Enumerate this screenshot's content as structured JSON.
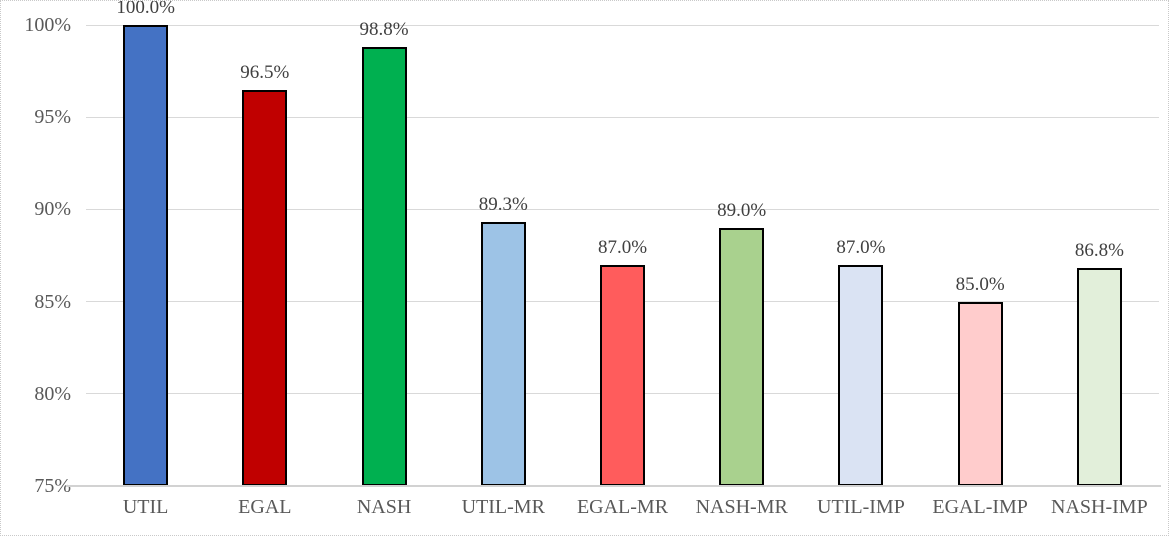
{
  "chart_data": {
    "type": "bar",
    "title": "",
    "xlabel": "",
    "ylabel": "",
    "categories": [
      "UTIL",
      "EGAL",
      "NASH",
      "UTIL-MR",
      "EGAL-MR",
      "NASH-MR",
      "UTIL-IMP",
      "EGAL-IMP",
      "NASH-IMP"
    ],
    "values": [
      100.0,
      96.5,
      98.8,
      89.3,
      87.0,
      89.0,
      87.0,
      85.0,
      86.8
    ],
    "value_labels": [
      "100.0%",
      "96.5%",
      "98.8%",
      "89.3%",
      "87.0%",
      "89.0%",
      "87.0%",
      "85.0%",
      "86.8%"
    ],
    "bar_colors": [
      "#4472c4",
      "#c00000",
      "#00b050",
      "#9dc3e6",
      "#ff5c5c",
      "#a9d18e",
      "#dae3f3",
      "#ffcccc",
      "#e2efda"
    ],
    "bar_border_color": "#000000",
    "ylim": [
      75,
      100
    ],
    "ytick_step": 5,
    "ytick_labels": [
      "75%",
      "80%",
      "85%",
      "90%",
      "95%",
      "100%"
    ],
    "grid": true,
    "gridline_color": "#d9d9d9",
    "axis_line_color": "#d2d2d2",
    "tick_text_color": "#595959",
    "value_text_color": "#404040",
    "legend_position": "none"
  }
}
